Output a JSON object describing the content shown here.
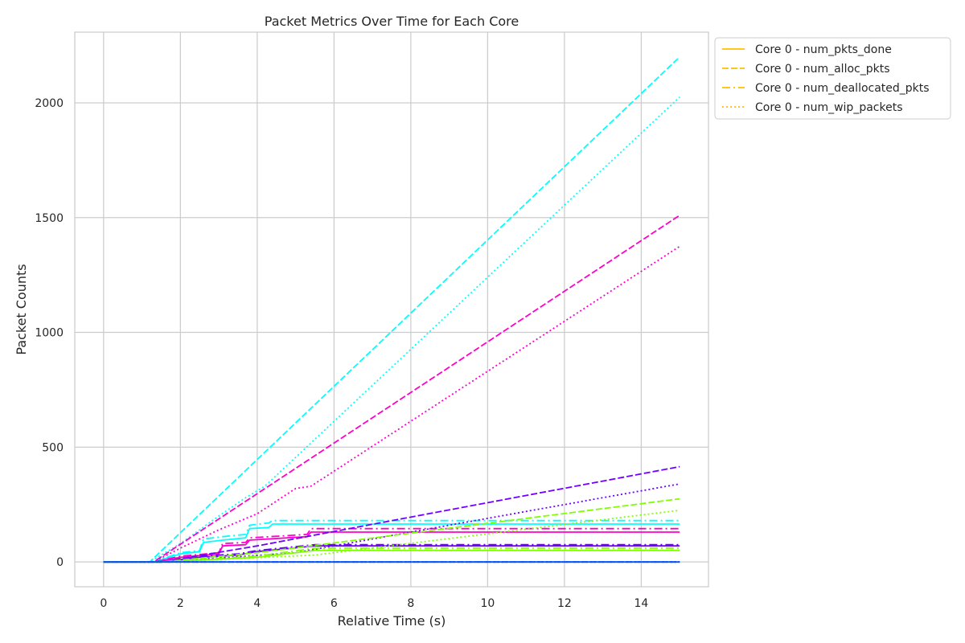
{
  "chart_data": {
    "type": "line",
    "title": "Packet Metrics Over Time for Each Core",
    "xlabel": "Relative Time (s)",
    "ylabel": "Packet Counts",
    "xlim": [
      -0.75,
      15.75
    ],
    "ylim": [
      -108,
      2308
    ],
    "xticks": [
      0,
      2,
      4,
      6,
      8,
      10,
      12,
      14
    ],
    "yticks": [
      0,
      500,
      1000,
      1500,
      2000
    ],
    "grid": true,
    "legend_position": "outside-top-right",
    "legend": [
      {
        "label": "Core 0 - num_pkts_done",
        "color": "#ffbf00",
        "dash": "solid"
      },
      {
        "label": "Core 0 - num_alloc_pkts",
        "color": "#ffbf00",
        "dash": "dashed"
      },
      {
        "label": "Core 0 - num_deallocated_pkts",
        "color": "#ffbf00",
        "dash": "dashdot"
      },
      {
        "label": "Core 0 - num_wip_packets",
        "color": "#ffbf00",
        "dash": "dotted"
      }
    ],
    "series": [
      {
        "color": "#00ffff",
        "dash": "dashed",
        "x": [
          0,
          1.2,
          15
        ],
        "y": [
          0,
          0,
          2200
        ]
      },
      {
        "color": "#00ffff",
        "dash": "dotted",
        "x": [
          0,
          1.2,
          2.0,
          3.0,
          3.7,
          4.2,
          15
        ],
        "y": [
          0,
          0,
          80,
          200,
          280,
          330,
          2025
        ]
      },
      {
        "color": "#00ffff",
        "dash": "dashdot",
        "x": [
          0,
          1.3,
          2.0,
          2.5,
          2.6,
          3.1,
          3.7,
          3.8,
          4.3,
          4.4,
          15
        ],
        "y": [
          0,
          0,
          40,
          50,
          100,
          110,
          120,
          160,
          170,
          180,
          180
        ]
      },
      {
        "color": "#00ffff",
        "dash": "solid",
        "x": [
          0,
          1.3,
          2.0,
          2.5,
          2.6,
          3.1,
          3.7,
          3.8,
          4.3,
          4.4,
          15
        ],
        "y": [
          0,
          0,
          35,
          45,
          85,
          95,
          105,
          145,
          150,
          165,
          165
        ]
      },
      {
        "color": "#ff00cc",
        "dash": "dashed",
        "x": [
          0,
          1.3,
          15
        ],
        "y": [
          0,
          0,
          1510
        ]
      },
      {
        "color": "#ff00cc",
        "dash": "dotted",
        "x": [
          0,
          1.3,
          2.0,
          3.0,
          4.0,
          5.0,
          5.4,
          15
        ],
        "y": [
          0,
          0,
          60,
          140,
          210,
          320,
          330,
          1375
        ]
      },
      {
        "color": "#ff00cc",
        "dash": "dashdot",
        "x": [
          0,
          1.3,
          2.0,
          3.0,
          3.1,
          3.7,
          3.8,
          5.3,
          5.4,
          15
        ],
        "y": [
          0,
          0,
          25,
          40,
          80,
          85,
          105,
          120,
          145,
          145
        ]
      },
      {
        "color": "#ff00cc",
        "dash": "solid",
        "x": [
          0,
          1.3,
          2.0,
          3.0,
          3.1,
          3.7,
          3.8,
          5.3,
          5.4,
          15
        ],
        "y": [
          0,
          0,
          20,
          35,
          70,
          75,
          95,
          110,
          130,
          130
        ]
      },
      {
        "color": "#7000ff",
        "dash": "dashed",
        "x": [
          0,
          1.5,
          4.0,
          15
        ],
        "y": [
          0,
          0,
          70,
          415
        ]
      },
      {
        "color": "#7000ff",
        "dash": "dotted",
        "x": [
          0,
          1.5,
          5.0,
          15
        ],
        "y": [
          0,
          0,
          40,
          340
        ]
      },
      {
        "color": "#7000ff",
        "dash": "dashdot",
        "x": [
          0,
          1.5,
          2.5,
          3.5,
          4.0,
          5.5,
          15
        ],
        "y": [
          0,
          0,
          25,
          35,
          50,
          75,
          75
        ]
      },
      {
        "color": "#7000ff",
        "dash": "solid",
        "x": [
          0,
          1.5,
          2.5,
          3.5,
          4.0,
          5.5,
          15
        ],
        "y": [
          0,
          0,
          20,
          30,
          45,
          70,
          70
        ]
      },
      {
        "color": "#80ff00",
        "dash": "dashed",
        "x": [
          0,
          1.5,
          4.0,
          15
        ],
        "y": [
          0,
          0,
          40,
          275
        ]
      },
      {
        "color": "#80ff00",
        "dash": "dotted",
        "x": [
          0,
          1.5,
          5.5,
          15
        ],
        "y": [
          0,
          0,
          30,
          225
        ]
      },
      {
        "color": "#80ff00",
        "dash": "dashdot",
        "x": [
          0,
          1.5,
          4.0,
          5.5,
          15
        ],
        "y": [
          0,
          0,
          25,
          60,
          60
        ]
      },
      {
        "color": "#80ff00",
        "dash": "solid",
        "x": [
          0,
          1.5,
          4.0,
          5.5,
          15
        ],
        "y": [
          0,
          0,
          20,
          50,
          50
        ]
      },
      {
        "color": "#0050ff",
        "dash": "solid",
        "x": [
          0,
          15
        ],
        "y": [
          0,
          0
        ]
      },
      {
        "color": "#0050ff",
        "dash": "dashed",
        "x": [
          0,
          15
        ],
        "y": [
          0,
          0
        ]
      },
      {
        "color": "#0050ff",
        "dash": "dotted",
        "x": [
          0,
          15
        ],
        "y": [
          0,
          0
        ]
      }
    ]
  }
}
